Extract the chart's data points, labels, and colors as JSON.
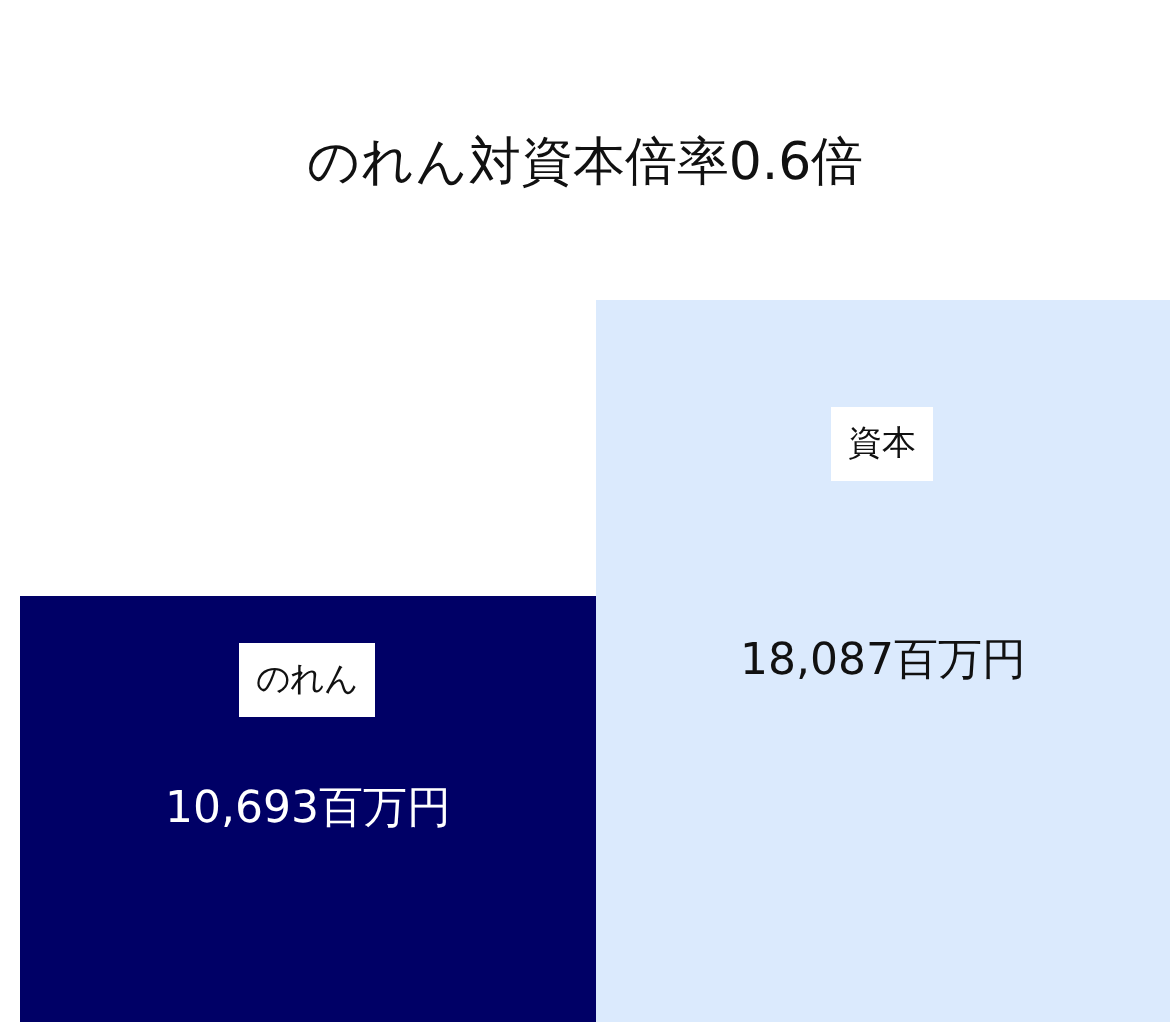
{
  "chart_data": {
    "type": "bar",
    "title": "のれん対資本倍率0.6倍",
    "categories": [
      "のれん",
      "資本"
    ],
    "values": [
      10693,
      18087
    ],
    "value_labels": [
      "10,693百万円",
      "18,087百万円"
    ],
    "colors": [
      "#000066",
      "#dbeafd"
    ]
  }
}
